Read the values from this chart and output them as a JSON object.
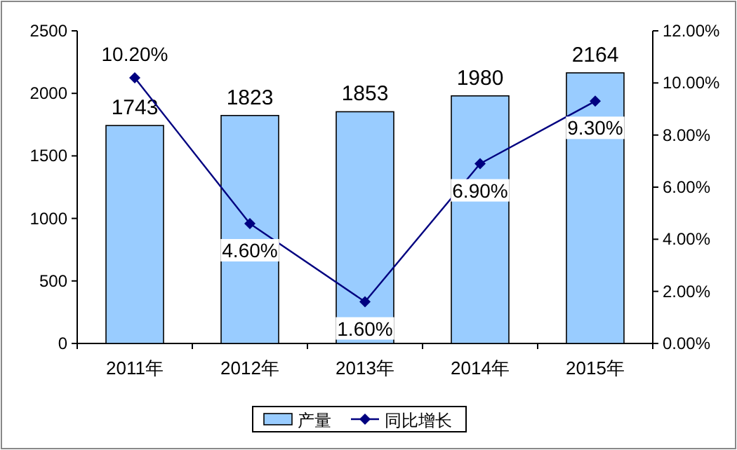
{
  "chart_data": {
    "type": "bar",
    "categories": [
      "2011年",
      "2012年",
      "2013年",
      "2014年",
      "2015年"
    ],
    "series": [
      {
        "name": "产量",
        "color": "#99ccff",
        "values": [
          1743,
          1823,
          1853,
          1980,
          2164
        ],
        "value_labels": [
          "1743",
          "1823",
          "1853",
          "1980",
          "2164"
        ]
      },
      {
        "name": "同比增长",
        "type": "line",
        "axis": "y2",
        "color": "#000080",
        "marker": "diamond",
        "values": [
          10.2,
          4.6,
          1.6,
          6.9,
          9.3
        ],
        "value_labels": [
          "10.20%",
          "4.60%",
          "1.60%",
          "6.90%",
          "9.30%"
        ]
      }
    ],
    "ylim": [
      0,
      2500
    ],
    "yticks": [
      0,
      500,
      1000,
      1500,
      2000,
      2500
    ],
    "y2lim": [
      0,
      12
    ],
    "y2ticks": [
      {
        "value": 0,
        "label": "0.00%"
      },
      {
        "value": 2,
        "label": "2.00%"
      },
      {
        "value": 4,
        "label": "4.00%"
      },
      {
        "value": 6,
        "label": "6.00%"
      },
      {
        "value": 8,
        "label": "8.00%"
      },
      {
        "value": 10,
        "label": "10.00%"
      },
      {
        "value": 12,
        "label": "12.00%"
      }
    ],
    "legend": "bottom"
  }
}
